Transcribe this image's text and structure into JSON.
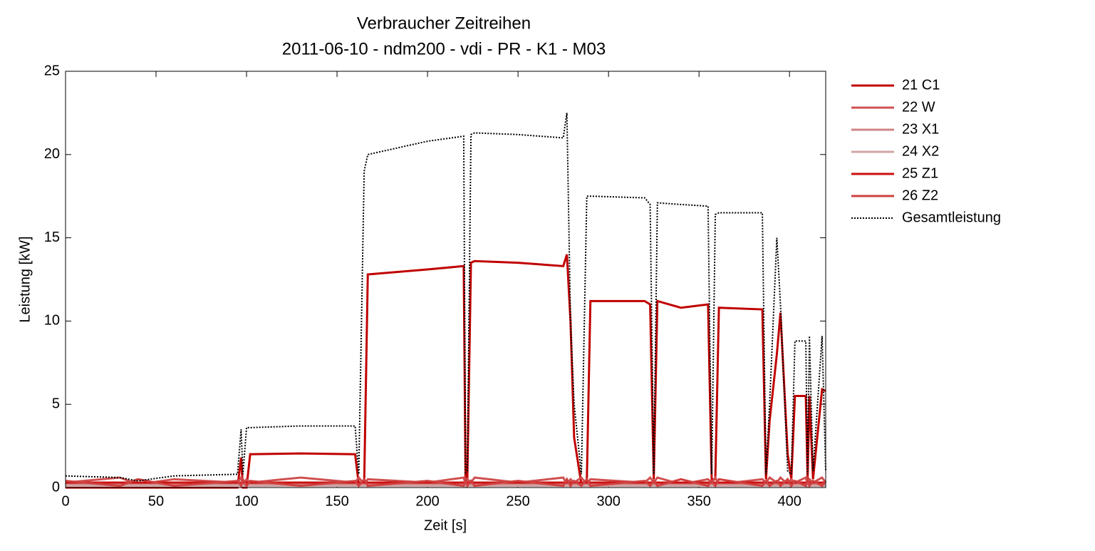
{
  "chart_data": {
    "type": "line",
    "title": "Verbraucher Zeitreihen",
    "subtitle": "2011-06-10 - ndm200 - vdi - PR - K1 - M03",
    "x_label": "Zeit [s]",
    "y_label": "Leistung [kW]",
    "xlim": [
      0,
      420
    ],
    "ylim": [
      0,
      25
    ],
    "xticks": [
      0,
      50,
      100,
      150,
      200,
      250,
      300,
      350,
      400
    ],
    "yticks": [
      0,
      5,
      10,
      15,
      20,
      25
    ],
    "legend": "outside-right",
    "x": [
      0,
      30,
      40,
      60,
      95,
      97,
      98,
      100,
      102,
      130,
      160,
      162,
      165,
      167,
      200,
      220,
      221,
      222,
      224,
      226,
      250,
      275,
      277,
      279,
      281,
      285,
      288,
      290,
      320,
      323,
      325,
      327,
      340,
      355,
      357,
      359,
      361,
      385,
      387,
      389,
      393,
      395,
      399,
      401,
      403,
      409,
      410,
      411,
      413,
      418,
      420
    ],
    "series": [
      {
        "name": "21 C1",
        "color": "#c00000",
        "style": "solid",
        "values": [
          0,
          0,
          0,
          0,
          0,
          1.8,
          0,
          0,
          2,
          2.05,
          2,
          0.2,
          0.2,
          12.8,
          13.1,
          13.3,
          0.5,
          0.5,
          13.5,
          13.6,
          13.5,
          13.3,
          14,
          10,
          3,
          0.2,
          0.3,
          11.2,
          11.2,
          11,
          0.5,
          11.2,
          10.8,
          11,
          0.5,
          0.5,
          10.8,
          10.7,
          0.5,
          4,
          8,
          10.5,
          2,
          0.5,
          5.5,
          5.5,
          0.5,
          5.5,
          0.5,
          5.9,
          5.8
        ]
      },
      {
        "name": "22 W",
        "color": "#d05050",
        "style": "solid",
        "values": [
          0.3,
          0.6,
          0.2,
          0.5,
          0.3,
          0.6,
          0.2,
          0.5,
          0.3,
          0.6,
          0.3,
          0.6,
          0.2,
          0.5,
          0.3,
          0.6,
          0.2,
          0.5,
          0.3,
          0.6,
          0.3,
          0.6,
          0.2,
          0.5,
          0.3,
          0.6,
          0.2,
          0.5,
          0.3,
          0.6,
          0.3,
          0.6,
          0.2,
          0.5,
          0.3,
          0.6,
          0.2,
          0.5,
          0.3,
          0.6,
          0.3,
          0.6,
          0.2,
          0.5,
          0.3,
          0.6,
          0.2,
          0.5,
          0.3,
          0.6,
          0.3
        ]
      },
      {
        "name": "23 X1",
        "color": "#d08585",
        "style": "solid",
        "values": [
          0.2,
          0.2,
          0.2,
          0.2,
          0.2,
          0.2,
          0.2,
          0.2,
          0.2,
          0.2,
          0.2,
          0.2,
          0.2,
          0.2,
          0.2,
          0.2,
          0.2,
          0.2,
          0.2,
          0.2,
          0.2,
          0.2,
          0.2,
          0.2,
          0.2,
          0.2,
          0.2,
          0.2,
          0.2,
          0.2,
          0.2,
          0.2,
          0.2,
          0.2,
          0.2,
          0.2,
          0.2,
          0.2,
          0.2,
          0.2,
          0.2,
          0.2,
          0.2,
          0.2,
          0.2,
          0.2,
          0.2,
          0.2,
          0.2,
          0.2,
          0.2
        ]
      },
      {
        "name": "24 X2",
        "color": "#d0a5a5",
        "style": "solid",
        "values": [
          0.1,
          0.1,
          0.1,
          0.1,
          0.1,
          0.1,
          0.1,
          0.1,
          0.1,
          0.1,
          0.1,
          0.1,
          0.1,
          0.1,
          0.1,
          0.1,
          0.1,
          0.1,
          0.1,
          0.1,
          0.1,
          0.1,
          0.1,
          0.1,
          0.1,
          0.1,
          0.1,
          0.1,
          0.1,
          0.1,
          0.1,
          0.1,
          0.1,
          0.1,
          0.1,
          0.1,
          0.1,
          0.1,
          0.1,
          0.1,
          0.1,
          0.1,
          0.1,
          0.1,
          0.1,
          0.1,
          0.1,
          0.1,
          0.1,
          0.1,
          0.1
        ]
      },
      {
        "name": "25 Z1",
        "color": "#cc1010",
        "style": "solid",
        "values": [
          0.3,
          0.3,
          0.3,
          0.3,
          0.3,
          0.3,
          0.3,
          0.3,
          0.3,
          0.3,
          0.3,
          0.3,
          0.3,
          0.3,
          0.3,
          0.3,
          0.3,
          0.3,
          0.3,
          0.3,
          0.3,
          0.3,
          0.3,
          0.3,
          0.3,
          0.3,
          0.3,
          0.3,
          0.3,
          0.3,
          0.3,
          0.3,
          0.3,
          0.3,
          0.3,
          0.3,
          0.3,
          0.3,
          0.3,
          0.3,
          0.3,
          0.3,
          0.3,
          0.3,
          0.3,
          0.3,
          0.3,
          0.3,
          0.3,
          0.3,
          0.3
        ]
      },
      {
        "name": "26 Z2",
        "color": "#d04040",
        "style": "solid",
        "values": [
          0.4,
          0.1,
          0.5,
          0.1,
          0.4,
          0.1,
          0.5,
          0.1,
          0.4,
          0.1,
          0.4,
          0.1,
          0.5,
          0.1,
          0.4,
          0.1,
          0.5,
          0.1,
          0.4,
          0.1,
          0.4,
          0.1,
          0.5,
          0.1,
          0.4,
          0.1,
          0.5,
          0.1,
          0.4,
          0.1,
          0.4,
          0.1,
          0.5,
          0.1,
          0.4,
          0.1,
          0.5,
          0.1,
          0.4,
          0.1,
          0.4,
          0.1,
          0.5,
          0.1,
          0.4,
          0.1,
          0.5,
          0.1,
          0.4,
          0.1,
          0.4
        ]
      },
      {
        "name": "Gesamtleistung",
        "color": "#000000",
        "style": "dotted",
        "values": [
          0.7,
          0.6,
          0.4,
          0.7,
          0.8,
          3.5,
          0.8,
          3.6,
          3.6,
          3.7,
          3.7,
          0.8,
          19,
          20,
          20.8,
          21.1,
          0.9,
          1,
          21.2,
          21.3,
          21.2,
          21,
          22.5,
          10,
          5,
          0.8,
          17.5,
          17.5,
          17.4,
          17,
          0.8,
          17.1,
          17,
          16.9,
          0.8,
          16.4,
          16.5,
          16.5,
          0.8,
          5,
          15,
          11,
          1,
          0.8,
          8.8,
          8.8,
          0.8,
          9.1,
          1,
          9.1,
          1
        ]
      }
    ]
  }
}
